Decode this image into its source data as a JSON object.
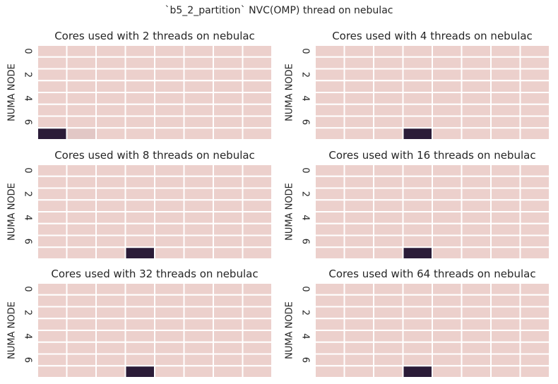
{
  "title": "`b5_2_partition` NVC(OMP) thread on nebulac",
  "colors": {
    "background_cell": "#ecd0cc",
    "highlight_cell": "#2b1c38",
    "gridline": "#ffffff",
    "text": "#262626"
  },
  "chart_data": [
    {
      "type": "heatmap",
      "title": "Cores used with 2 threads on nebulac",
      "ylabel": "NUMA NODE",
      "ytick_labels": [
        "0",
        "2",
        "4",
        "6"
      ],
      "rows": 8,
      "cols": 8,
      "values": [
        [
          0,
          0,
          0,
          0,
          0,
          0,
          0,
          0
        ],
        [
          0,
          0,
          0,
          0,
          0,
          0,
          0,
          0
        ],
        [
          0,
          0,
          0,
          0,
          0,
          0,
          0,
          0
        ],
        [
          0,
          0,
          0,
          0,
          0,
          0,
          0,
          0
        ],
        [
          0,
          0,
          0,
          0,
          0,
          0,
          0,
          0
        ],
        [
          0,
          0,
          0,
          0,
          0,
          0,
          0,
          0
        ],
        [
          0,
          0,
          0,
          0,
          0,
          0,
          0,
          0
        ],
        [
          2,
          0.1,
          0,
          0,
          0,
          0,
          0,
          0
        ]
      ]
    },
    {
      "type": "heatmap",
      "title": "Cores used with 4 threads on nebulac",
      "ylabel": "NUMA NODE",
      "ytick_labels": [
        "0",
        "2",
        "4",
        "6"
      ],
      "rows": 8,
      "cols": 8,
      "values": [
        [
          0,
          0,
          0,
          0,
          0,
          0,
          0,
          0
        ],
        [
          0,
          0,
          0,
          0,
          0,
          0,
          0,
          0
        ],
        [
          0,
          0,
          0,
          0,
          0,
          0,
          0,
          0
        ],
        [
          0,
          0,
          0,
          0,
          0,
          0,
          0,
          0
        ],
        [
          0,
          0,
          0,
          0,
          0,
          0,
          0,
          0
        ],
        [
          0,
          0,
          0,
          0,
          0,
          0,
          0,
          0
        ],
        [
          0,
          0,
          0,
          0,
          0,
          0,
          0,
          0
        ],
        [
          0,
          0,
          0,
          4,
          0,
          0,
          0,
          0
        ]
      ]
    },
    {
      "type": "heatmap",
      "title": "Cores used with 8 threads on nebulac",
      "ylabel": "NUMA NODE",
      "ytick_labels": [
        "0",
        "2",
        "4",
        "6"
      ],
      "rows": 8,
      "cols": 8,
      "values": [
        [
          0,
          0,
          0,
          0,
          0,
          0,
          0,
          0
        ],
        [
          0,
          0,
          0,
          0,
          0,
          0,
          0,
          0
        ],
        [
          0,
          0,
          0,
          0,
          0,
          0,
          0,
          0
        ],
        [
          0,
          0,
          0,
          0,
          0,
          0,
          0,
          0
        ],
        [
          0,
          0,
          0,
          0,
          0,
          0,
          0,
          0
        ],
        [
          0,
          0,
          0,
          0,
          0,
          0,
          0,
          0
        ],
        [
          0,
          0,
          0,
          0,
          0,
          0,
          0,
          0
        ],
        [
          0,
          0,
          0,
          8,
          0,
          0,
          0,
          0
        ]
      ]
    },
    {
      "type": "heatmap",
      "title": "Cores used with 16 threads on nebulac",
      "ylabel": "NUMA NODE",
      "ytick_labels": [
        "0",
        "2",
        "4",
        "6"
      ],
      "rows": 8,
      "cols": 8,
      "values": [
        [
          0,
          0,
          0,
          0,
          0,
          0,
          0,
          0
        ],
        [
          0,
          0,
          0,
          0,
          0,
          0,
          0,
          0
        ],
        [
          0,
          0,
          0,
          0,
          0,
          0,
          0,
          0
        ],
        [
          0,
          0,
          0,
          0,
          0,
          0,
          0,
          0
        ],
        [
          0,
          0,
          0,
          0,
          0,
          0,
          0,
          0
        ],
        [
          0,
          0,
          0,
          0,
          0,
          0,
          0,
          0
        ],
        [
          0,
          0,
          0,
          0,
          0,
          0,
          0,
          0
        ],
        [
          0,
          0,
          0,
          16,
          0,
          0,
          0,
          0
        ]
      ]
    },
    {
      "type": "heatmap",
      "title": "Cores used with 32 threads on nebulac",
      "ylabel": "NUMA NODE",
      "ytick_labels": [
        "0",
        "2",
        "4",
        "6"
      ],
      "rows": 8,
      "cols": 8,
      "values": [
        [
          0,
          0,
          0,
          0,
          0,
          0,
          0,
          0
        ],
        [
          0,
          0,
          0,
          0,
          0,
          0,
          0,
          0
        ],
        [
          0,
          0,
          0,
          0,
          0,
          0,
          0,
          0
        ],
        [
          0,
          0,
          0,
          0,
          0,
          0,
          0,
          0
        ],
        [
          0,
          0,
          0,
          0,
          0,
          0,
          0,
          0
        ],
        [
          0,
          0,
          0,
          0,
          0,
          0,
          0,
          0
        ],
        [
          0,
          0,
          0,
          0,
          0,
          0,
          0,
          0
        ],
        [
          0,
          0,
          0,
          32,
          0,
          0,
          0,
          0
        ]
      ]
    },
    {
      "type": "heatmap",
      "title": "Cores used with 64 threads on nebulac",
      "ylabel": "NUMA NODE",
      "ytick_labels": [
        "0",
        "2",
        "4",
        "6"
      ],
      "rows": 8,
      "cols": 8,
      "values": [
        [
          0,
          0,
          0,
          0,
          0,
          0,
          0,
          0
        ],
        [
          0,
          0,
          0,
          0,
          0,
          0,
          0,
          0
        ],
        [
          0,
          0,
          0,
          0,
          0,
          0,
          0,
          0
        ],
        [
          0,
          0,
          0,
          0,
          0,
          0,
          0,
          0
        ],
        [
          0,
          0,
          0,
          0,
          0,
          0,
          0,
          0
        ],
        [
          0,
          0,
          0,
          0,
          0,
          0,
          0,
          0
        ],
        [
          0,
          0,
          0,
          0,
          0,
          0,
          0,
          0
        ],
        [
          0,
          0,
          0,
          64,
          0,
          0,
          0,
          0
        ]
      ]
    }
  ]
}
